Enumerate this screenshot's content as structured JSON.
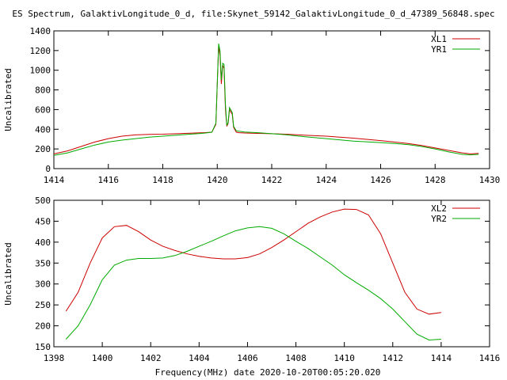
{
  "title": "ES Spectrum, GalaktivLongitude_0_d, file:Skynet_59142_GalaktivLongitude_0_d_47389_56848.spec",
  "xlabel": "Frequency(MHz) date 2020-10-20T00:05:20.020",
  "chart_data": [
    {
      "type": "line",
      "ylabel": "Uncalibrated",
      "xlim": [
        1414,
        1430
      ],
      "ylim": [
        0,
        1400
      ],
      "xticks": [
        1414,
        1416,
        1418,
        1420,
        1422,
        1424,
        1426,
        1428,
        1430
      ],
      "yticks": [
        0,
        200,
        400,
        600,
        800,
        1000,
        1200,
        1400
      ],
      "legend_position": "top-right",
      "series": [
        {
          "name": "XL1",
          "color": "#cc0000",
          "x": [
            1414.0,
            1414.5,
            1415.0,
            1415.5,
            1416.0,
            1416.5,
            1417.0,
            1417.5,
            1418.0,
            1418.5,
            1419.0,
            1419.5,
            1419.8,
            1419.95,
            1420.05,
            1420.1,
            1420.15,
            1420.2,
            1420.25,
            1420.3,
            1420.35,
            1420.4,
            1420.45,
            1420.55,
            1420.6,
            1420.7,
            1420.8,
            1421.0,
            1421.5,
            1422.0,
            1422.5,
            1423.0,
            1424.0,
            1425.0,
            1426.0,
            1426.5,
            1427.0,
            1427.5,
            1428.0,
            1428.5,
            1429.0,
            1429.3,
            1429.6
          ],
          "y": [
            150,
            180,
            225,
            270,
            305,
            330,
            343,
            348,
            350,
            355,
            360,
            365,
            370,
            450,
            1250,
            1150,
            860,
            1050,
            1020,
            600,
            430,
            460,
            600,
            550,
            420,
            370,
            365,
            362,
            358,
            355,
            350,
            343,
            330,
            310,
            285,
            270,
            255,
            235,
            210,
            185,
            160,
            150,
            155
          ]
        },
        {
          "name": "YR1",
          "color": "#00aa00",
          "x": [
            1414.0,
            1414.5,
            1415.0,
            1415.5,
            1416.0,
            1416.5,
            1417.0,
            1417.5,
            1418.0,
            1418.5,
            1419.0,
            1419.5,
            1419.8,
            1419.95,
            1420.05,
            1420.1,
            1420.15,
            1420.2,
            1420.25,
            1420.3,
            1420.35,
            1420.4,
            1420.45,
            1420.55,
            1420.6,
            1420.7,
            1420.8,
            1421.0,
            1421.5,
            1422.0,
            1422.5,
            1423.0,
            1424.0,
            1425.0,
            1426.0,
            1426.5,
            1427.0,
            1427.5,
            1428.0,
            1428.5,
            1429.0,
            1429.3,
            1429.6
          ],
          "y": [
            135,
            160,
            200,
            240,
            270,
            290,
            305,
            320,
            330,
            340,
            350,
            360,
            370,
            460,
            1270,
            1200,
            900,
            1070,
            1060,
            650,
            440,
            470,
            620,
            570,
            430,
            385,
            380,
            372,
            365,
            355,
            345,
            330,
            305,
            280,
            265,
            255,
            245,
            225,
            200,
            170,
            145,
            140,
            145
          ]
        }
      ]
    },
    {
      "type": "line",
      "ylabel": "Uncalibrated",
      "xlim": [
        1398,
        1416
      ],
      "ylim": [
        150,
        500
      ],
      "xticks": [
        1398,
        1400,
        1402,
        1404,
        1406,
        1408,
        1410,
        1412,
        1414,
        1416
      ],
      "yticks": [
        150,
        200,
        250,
        300,
        350,
        400,
        450,
        500
      ],
      "legend_position": "top-right",
      "series": [
        {
          "name": "XL2",
          "color": "#cc0000",
          "x": [
            1398.5,
            1399.0,
            1399.5,
            1400.0,
            1400.5,
            1401.0,
            1401.5,
            1402.0,
            1402.5,
            1403.0,
            1403.5,
            1404.0,
            1404.5,
            1405.0,
            1405.5,
            1406.0,
            1406.5,
            1407.0,
            1407.5,
            1408.0,
            1408.5,
            1409.0,
            1409.5,
            1410.0,
            1410.5,
            1411.0,
            1411.5,
            1412.0,
            1412.5,
            1413.0,
            1413.5,
            1414.0
          ],
          "y": [
            235,
            280,
            350,
            410,
            437,
            440,
            425,
            405,
            390,
            380,
            372,
            366,
            362,
            360,
            360,
            363,
            372,
            387,
            405,
            425,
            445,
            460,
            472,
            479,
            478,
            465,
            420,
            350,
            280,
            240,
            228,
            232
          ]
        },
        {
          "name": "YR2",
          "color": "#00aa00",
          "x": [
            1398.5,
            1399.0,
            1399.5,
            1400.0,
            1400.5,
            1401.0,
            1401.5,
            1402.0,
            1402.5,
            1403.0,
            1403.5,
            1404.0,
            1404.5,
            1405.0,
            1405.5,
            1406.0,
            1406.5,
            1407.0,
            1407.5,
            1408.0,
            1408.5,
            1409.0,
            1409.5,
            1410.0,
            1410.5,
            1411.0,
            1411.5,
            1412.0,
            1412.5,
            1413.0,
            1413.5,
            1414.0
          ],
          "y": [
            168,
            200,
            250,
            310,
            345,
            357,
            361,
            361,
            362,
            368,
            378,
            390,
            402,
            415,
            427,
            434,
            437,
            433,
            420,
            402,
            385,
            365,
            345,
            322,
            303,
            285,
            265,
            240,
            210,
            180,
            166,
            168
          ]
        }
      ]
    }
  ]
}
